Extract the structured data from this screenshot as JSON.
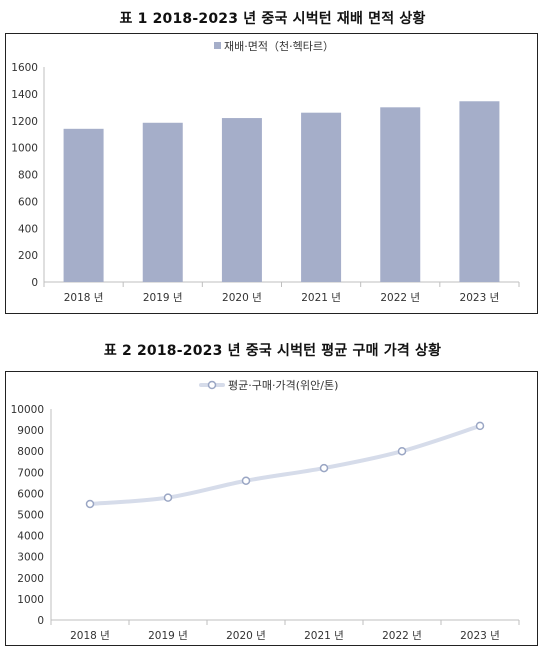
{
  "titles": {
    "chart1": "표 1   2018-2023 년 중국 시벅턴 재배 면적 상황",
    "chart2": "표 2   2018-2023 년 중국 시벅턴 평균 구매 가격 상황"
  },
  "colors": {
    "bar": "#a5aec9",
    "line": "#d6dcea",
    "marker_stroke": "#9aa6c4",
    "axis": "#bfbfbf"
  },
  "chart_data": [
    {
      "type": "bar",
      "title": "표 1   2018-2023 년 중국 시벅턴 재배 면적 상황",
      "categories": [
        "2018 년",
        "2019 년",
        "2020 년",
        "2021 년",
        "2022 년",
        "2023 년"
      ],
      "series": [
        {
          "name": "재배·면적（천·헥타르）",
          "values": [
            1140,
            1185,
            1220,
            1260,
            1300,
            1345
          ]
        }
      ],
      "yticks": [
        "0",
        "200",
        "400",
        "600",
        "800",
        "1000",
        "1200",
        "1400",
        "1600"
      ],
      "ylim": [
        0,
        1600
      ],
      "legend": "top-center",
      "grid": false
    },
    {
      "type": "line",
      "title": "표 2   2018-2023 년 중국 시벅턴 평균 구매 가격 상황",
      "categories": [
        "2018 년",
        "2019 년",
        "2020 년",
        "2021 년",
        "2022 년",
        "2023 년"
      ],
      "series": [
        {
          "name": "평균·구매·가격(위안/톤)",
          "values": [
            5500,
            5800,
            6600,
            7200,
            8000,
            9200
          ]
        }
      ],
      "yticks": [
        "0",
        "1000",
        "2000",
        "3000",
        "4000",
        "5000",
        "6000",
        "7000",
        "8000",
        "9000",
        "10000"
      ],
      "ylim": [
        0,
        10000
      ],
      "legend": "top-center",
      "grid": false
    }
  ]
}
